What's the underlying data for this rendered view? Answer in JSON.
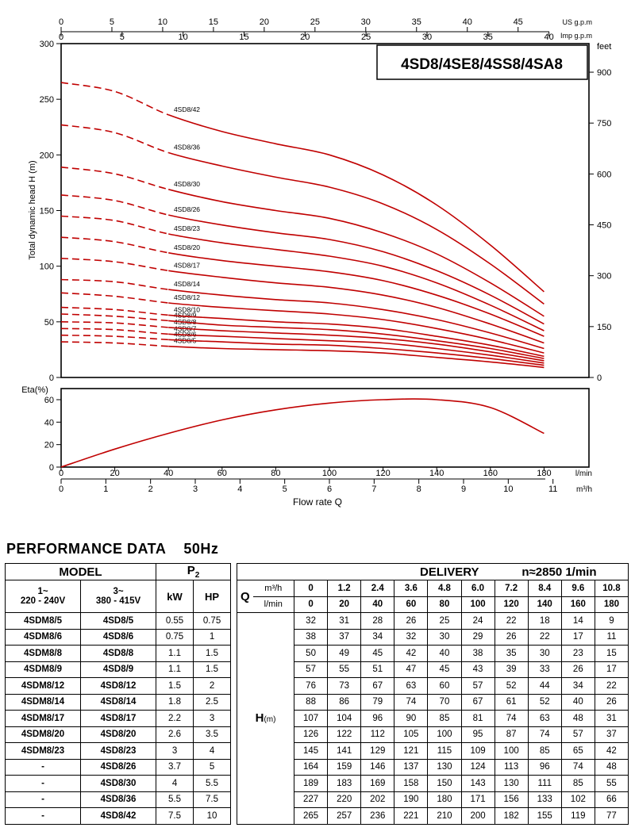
{
  "chart_data": {
    "type": "line",
    "title": "4SD8/4SE8/4SS8/4SA8",
    "head_chart": {
      "ylabel": "Total dynamic head H (m)",
      "ylim": [
        0,
        300
      ],
      "yticks": [
        0,
        50,
        100,
        150,
        200,
        250,
        300
      ],
      "right_unit": "feet",
      "right_ticks": [
        0,
        150,
        300,
        450,
        600,
        750,
        900
      ],
      "x_flow_lmin": [
        0,
        20,
        40,
        60,
        80,
        100,
        120,
        140,
        160,
        180
      ],
      "series": [
        {
          "name": "4SD8/5",
          "values": [
            32,
            31,
            28,
            26,
            25,
            24,
            22,
            18,
            14,
            9
          ]
        },
        {
          "name": "4SD8/6",
          "values": [
            38,
            37,
            34,
            32,
            30,
            29,
            26,
            22,
            17,
            11
          ]
        },
        {
          "name": "4SD8/7",
          "values": [
            44,
            43,
            39,
            37,
            35,
            33,
            31,
            26,
            20,
            13
          ]
        },
        {
          "name": "4SD8/8",
          "values": [
            50,
            49,
            45,
            42,
            40,
            38,
            35,
            30,
            23,
            15
          ]
        },
        {
          "name": "4SD8/9",
          "values": [
            57,
            55,
            51,
            47,
            45,
            43,
            39,
            33,
            26,
            17
          ]
        },
        {
          "name": "4SD8/10",
          "values": [
            63,
            61,
            56,
            53,
            50,
            48,
            44,
            37,
            29,
            19
          ]
        },
        {
          "name": "4SD8/12",
          "values": [
            76,
            73,
            67,
            63,
            60,
            57,
            52,
            44,
            34,
            22
          ]
        },
        {
          "name": "4SD8/14",
          "values": [
            88,
            86,
            79,
            74,
            70,
            67,
            61,
            52,
            40,
            26
          ]
        },
        {
          "name": "4SD8/17",
          "values": [
            107,
            104,
            96,
            90,
            85,
            81,
            74,
            63,
            48,
            31
          ]
        },
        {
          "name": "4SD8/20",
          "values": [
            126,
            122,
            112,
            105,
            100,
            95,
            87,
            74,
            57,
            37
          ]
        },
        {
          "name": "4SD8/23",
          "values": [
            145,
            141,
            129,
            121,
            115,
            109,
            100,
            85,
            65,
            42
          ]
        },
        {
          "name": "4SD8/26",
          "values": [
            164,
            159,
            146,
            137,
            130,
            124,
            113,
            96,
            74,
            48
          ]
        },
        {
          "name": "4SD8/30",
          "values": [
            189,
            183,
            169,
            158,
            150,
            143,
            130,
            111,
            85,
            55
          ]
        },
        {
          "name": "4SD8/36",
          "values": [
            227,
            220,
            202,
            190,
            180,
            171,
            156,
            133,
            102,
            66
          ]
        },
        {
          "name": "4SD8/42",
          "values": [
            265,
            257,
            236,
            221,
            210,
            200,
            182,
            155,
            119,
            77
          ]
        }
      ]
    },
    "eta_chart": {
      "ylabel": "Eta(%)",
      "ylim": [
        0,
        70
      ],
      "yticks": [
        0,
        20,
        40,
        60
      ],
      "x": [
        0,
        20,
        40,
        60,
        80,
        100,
        120,
        140,
        160,
        180
      ],
      "values": [
        0,
        16,
        30,
        42,
        51,
        57,
        60,
        60,
        53,
        30
      ]
    },
    "x_axes": {
      "usgpm": {
        "unit": "US g.p.m",
        "ticks": [
          0,
          5,
          10,
          15,
          20,
          25,
          30,
          35,
          40,
          45
        ]
      },
      "impgpm": {
        "unit": "Imp g.p.m",
        "ticks": [
          0,
          5,
          10,
          15,
          20,
          25,
          30,
          35,
          40
        ]
      },
      "lmin": {
        "unit": "l/min",
        "ticks": [
          0,
          20,
          40,
          60,
          80,
          100,
          120,
          140,
          160,
          180
        ]
      },
      "m3h": {
        "unit": "m³/h",
        "ticks": [
          0,
          1,
          2,
          3,
          4,
          5,
          6,
          7,
          8,
          9,
          10,
          11
        ]
      },
      "xlabel": "Flow rate Q"
    },
    "colors": {
      "curve": "#c00000",
      "axis": "#000000"
    }
  },
  "performance": {
    "title": "PERFORMANCE DATA",
    "freq": "50Hz",
    "model_header": "MODEL",
    "p2_header": "P",
    "p2_sub": "2",
    "delivery_header": "DELIVERY",
    "speed": "n≈2850 1/min",
    "col_1ph": "1~\n220 - 240V",
    "col_3ph": "3~\n380 - 415V",
    "kw": "kW",
    "hp": "HP",
    "q_label": "Q",
    "m3h_unit": "m³/h",
    "lmin_unit": "l/min",
    "h_label": "H",
    "h_unit": "(m)",
    "q_m3h": [
      "0",
      "1.2",
      "2.4",
      "3.6",
      "4.8",
      "6.0",
      "7.2",
      "8.4",
      "9.6",
      "10.8"
    ],
    "q_lmin": [
      "0",
      "20",
      "40",
      "60",
      "80",
      "100",
      "120",
      "140",
      "160",
      "180"
    ],
    "rows": [
      {
        "m1": "4SDM8/5",
        "m3": "4SD8/5",
        "kw": "0.55",
        "hp": "0.75",
        "h": [
          "32",
          "31",
          "28",
          "26",
          "25",
          "24",
          "22",
          "18",
          "14",
          "9"
        ]
      },
      {
        "m1": "4SDM8/6",
        "m3": "4SD8/6",
        "kw": "0.75",
        "hp": "1",
        "h": [
          "38",
          "37",
          "34",
          "32",
          "30",
          "29",
          "26",
          "22",
          "17",
          "11"
        ]
      },
      {
        "m1": "4SDM8/8",
        "m3": "4SD8/8",
        "kw": "1.1",
        "hp": "1.5",
        "h": [
          "50",
          "49",
          "45",
          "42",
          "40",
          "38",
          "35",
          "30",
          "23",
          "15"
        ]
      },
      {
        "m1": "4SDM8/9",
        "m3": "4SD8/9",
        "kw": "1.1",
        "hp": "1.5",
        "h": [
          "57",
          "55",
          "51",
          "47",
          "45",
          "43",
          "39",
          "33",
          "26",
          "17"
        ]
      },
      {
        "m1": "4SDM8/12",
        "m3": "4SD8/12",
        "kw": "1.5",
        "hp": "2",
        "h": [
          "76",
          "73",
          "67",
          "63",
          "60",
          "57",
          "52",
          "44",
          "34",
          "22"
        ]
      },
      {
        "m1": "4SDM8/14",
        "m3": "4SD8/14",
        "kw": "1.8",
        "hp": "2.5",
        "h": [
          "88",
          "86",
          "79",
          "74",
          "70",
          "67",
          "61",
          "52",
          "40",
          "26"
        ]
      },
      {
        "m1": "4SDM8/17",
        "m3": "4SD8/17",
        "kw": "2.2",
        "hp": "3",
        "h": [
          "107",
          "104",
          "96",
          "90",
          "85",
          "81",
          "74",
          "63",
          "48",
          "31"
        ]
      },
      {
        "m1": "4SDM8/20",
        "m3": "4SD8/20",
        "kw": "2.6",
        "hp": "3.5",
        "h": [
          "126",
          "122",
          "112",
          "105",
          "100",
          "95",
          "87",
          "74",
          "57",
          "37"
        ]
      },
      {
        "m1": "4SDM8/23",
        "m3": "4SD8/23",
        "kw": "3",
        "hp": "4",
        "h": [
          "145",
          "141",
          "129",
          "121",
          "115",
          "109",
          "100",
          "85",
          "65",
          "42"
        ]
      },
      {
        "m1": "-",
        "m3": "4SD8/26",
        "kw": "3.7",
        "hp": "5",
        "h": [
          "164",
          "159",
          "146",
          "137",
          "130",
          "124",
          "113",
          "96",
          "74",
          "48"
        ]
      },
      {
        "m1": "-",
        "m3": "4SD8/30",
        "kw": "4",
        "hp": "5.5",
        "h": [
          "189",
          "183",
          "169",
          "158",
          "150",
          "143",
          "130",
          "111",
          "85",
          "55"
        ]
      },
      {
        "m1": "-",
        "m3": "4SD8/36",
        "kw": "5.5",
        "hp": "7.5",
        "h": [
          "227",
          "220",
          "202",
          "190",
          "180",
          "171",
          "156",
          "133",
          "102",
          "66"
        ]
      },
      {
        "m1": "-",
        "m3": "4SD8/42",
        "kw": "7.5",
        "hp": "10",
        "h": [
          "265",
          "257",
          "236",
          "221",
          "210",
          "200",
          "182",
          "155",
          "119",
          "77"
        ]
      }
    ]
  }
}
